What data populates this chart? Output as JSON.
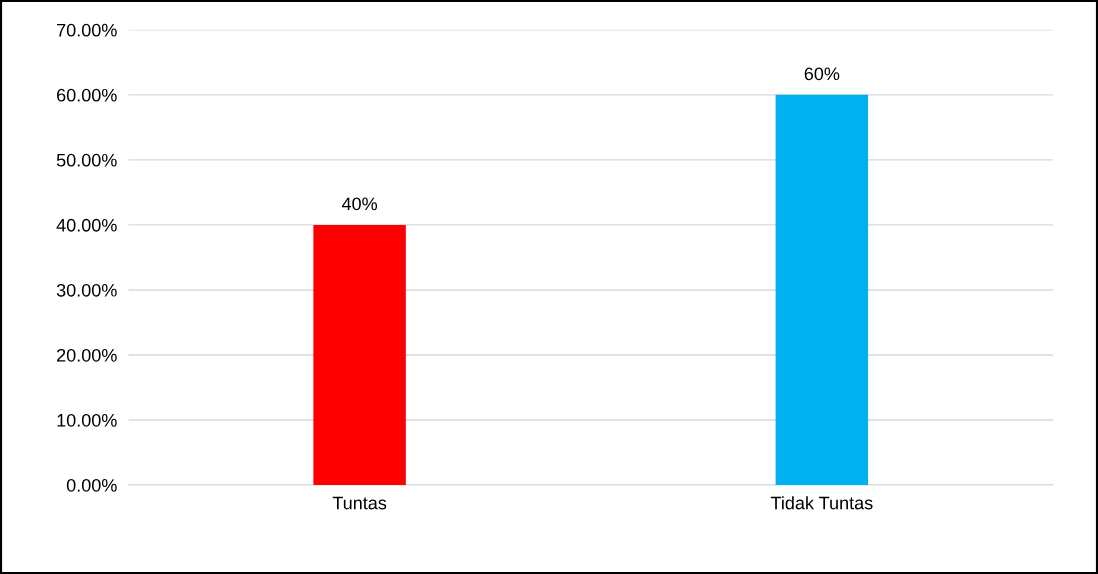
{
  "chart_data": {
    "type": "bar",
    "categories": [
      "Tuntas",
      "Tidak Tuntas"
    ],
    "values": [
      40,
      60
    ],
    "colors": [
      "#ff0000",
      "#00b0f0"
    ],
    "value_labels": [
      "40%",
      "60%"
    ],
    "ylim": [
      0,
      70
    ],
    "yticks": [
      {
        "value": 0,
        "label": "0.00%"
      },
      {
        "value": 10,
        "label": "10.00%"
      },
      {
        "value": 20,
        "label": "20.00%"
      },
      {
        "value": 30,
        "label": "30.00%"
      },
      {
        "value": 40,
        "label": "40.00%"
      },
      {
        "value": 50,
        "label": "50.00%"
      },
      {
        "value": 60,
        "label": "60.00%"
      },
      {
        "value": 70,
        "label": "70.00%"
      }
    ],
    "grid": "y",
    "legend": false
  }
}
